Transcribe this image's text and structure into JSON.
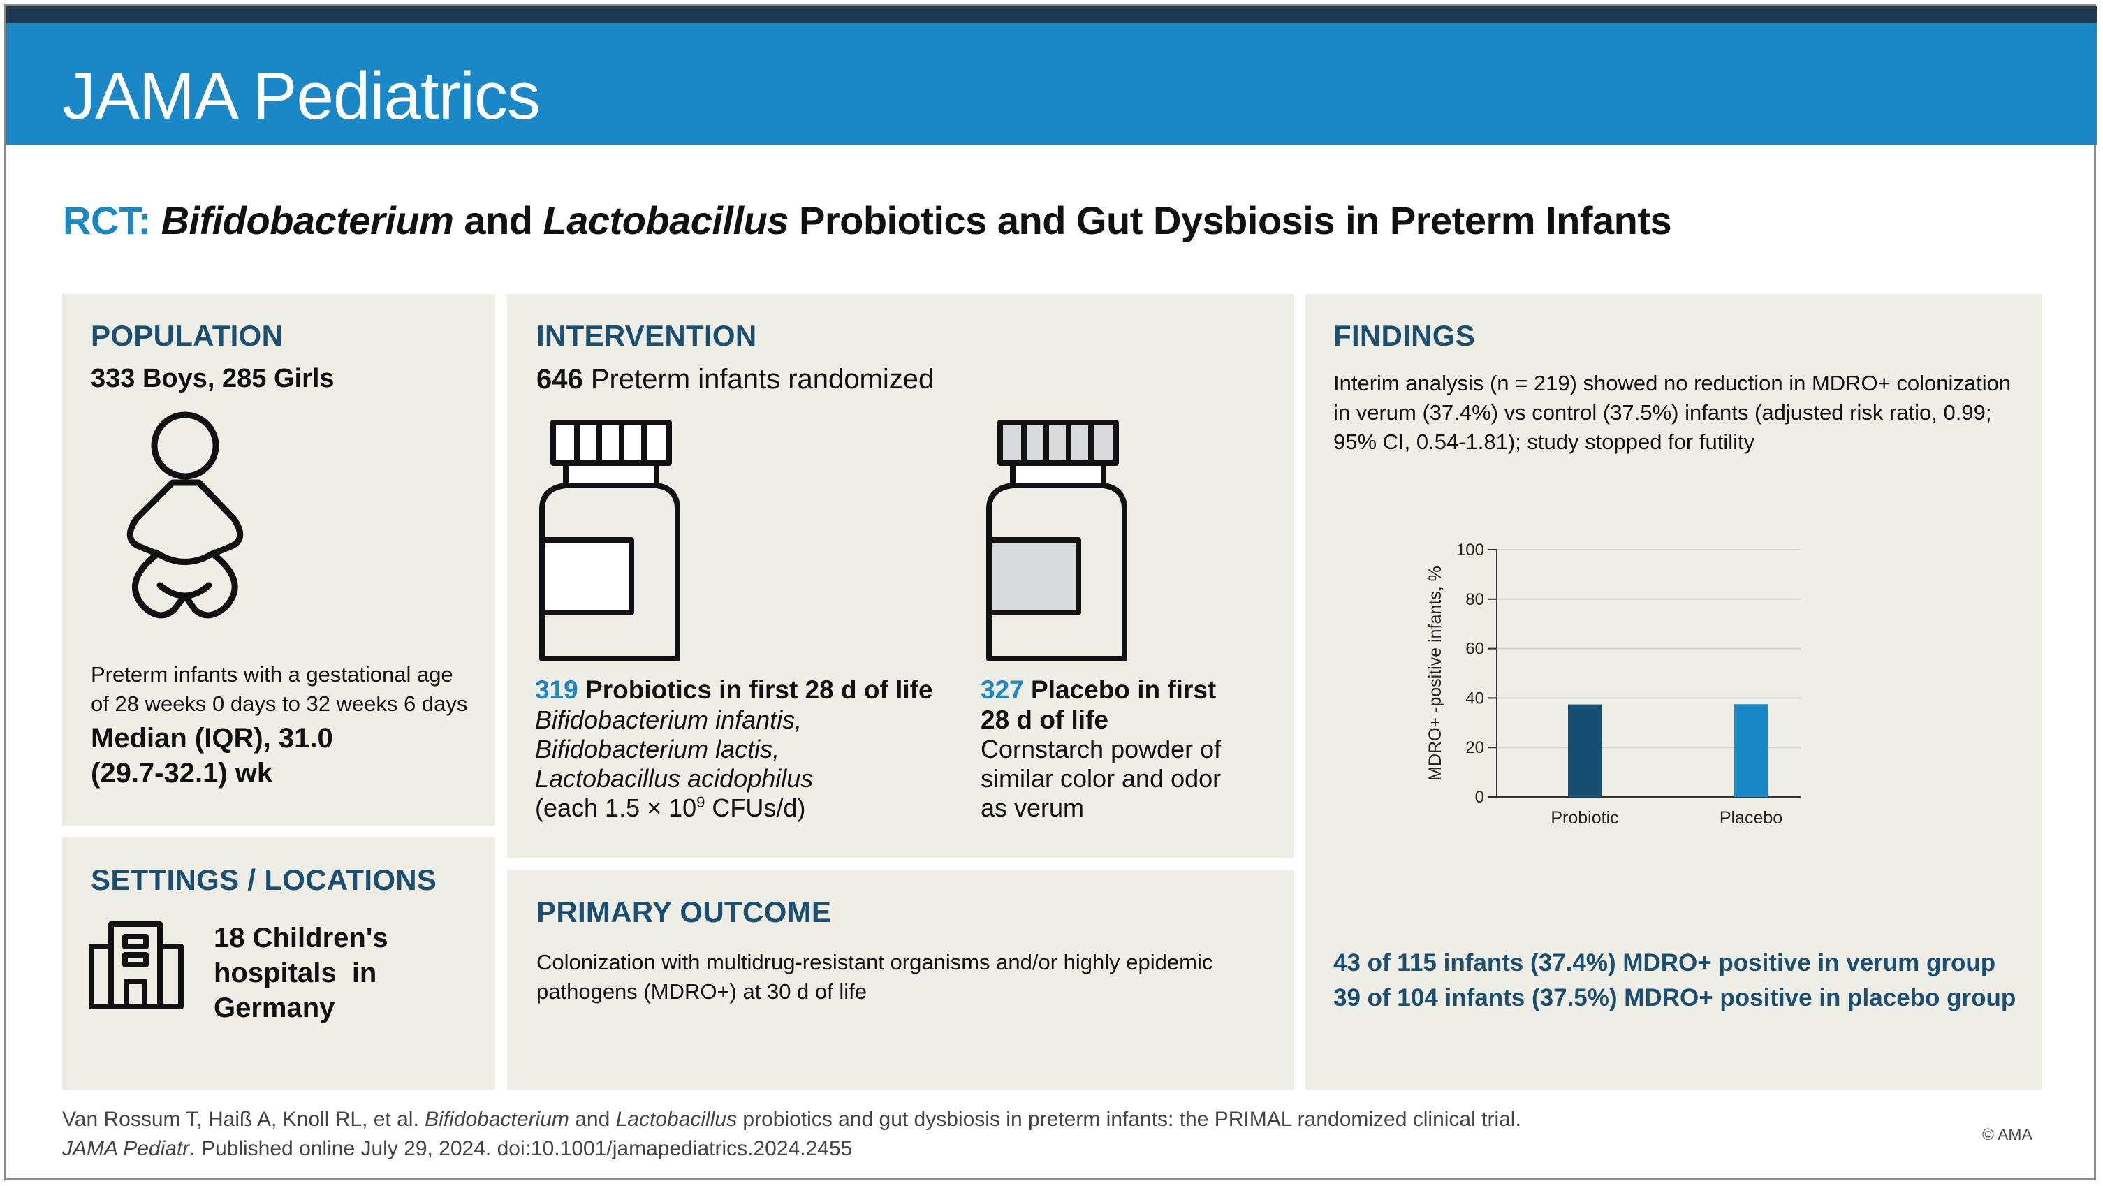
{
  "brand": "JAMA Pediatrics",
  "title": {
    "prefix": "RCT:",
    "b1": "Bifidobacterium",
    "and": "and",
    "b2": "Lactobacillus",
    "rest": "Probiotics and Gut Dysbiosis in Preterm Infants"
  },
  "population": {
    "heading": "POPULATION",
    "sex": "333 Boys, 285 Girls",
    "desc_line1": "Preterm infants with a gestational age",
    "desc_line2": "of 28 weeks 0 days to 32 weeks 6 days",
    "median_line1": "Median (IQR), 31.0",
    "median_line2": "(29.7-32.1) wk",
    "icon": "infant-icon"
  },
  "settings": {
    "heading": "SETTINGS / LOCATIONS",
    "line1": "18 Children's",
    "line2": "hospitals  in",
    "line3": "Germany",
    "icon": "hospital-building-icon"
  },
  "intervention": {
    "heading": "INTERVENTION",
    "randomized_count": "646",
    "randomized_text": "Preterm infants randomized",
    "probiotic": {
      "count": "319",
      "label": "Probiotics in first 28 d of life",
      "line1": "Bifidobacterium infantis,",
      "line2": "Bifidobacterium lactis,",
      "line3": "Lactobacillus acidophilus",
      "dose_pre": "(each 1.5 × 10",
      "dose_exp": "9",
      "dose_post": " CFUs/d)",
      "icon": "probiotic-bottle-icon"
    },
    "placebo": {
      "count": "327",
      "label_line1": "Placebo in first",
      "label_line2": "28 d of life",
      "line1": "Cornstarch powder of",
      "line2": "similar color and odor",
      "line3": "as verum",
      "icon": "placebo-bottle-icon"
    }
  },
  "outcome": {
    "heading": "PRIMARY OUTCOME",
    "line1": "Colonization with multidrug-resistant organisms and/or highly epidemic",
    "line2": "pathogens (MDRO+) at 30 d of life"
  },
  "findings": {
    "heading": "FINDINGS",
    "line1": "Interim analysis (n = 219) showed no reduction in MDRO+ colonization",
    "line2": "in verum (37.4%) vs control (37.5%) infants (adjusted risk ratio, 0.99;",
    "line3": "95% CI, 0.54-1.81); study stopped for futility",
    "result1": "43 of 115 infants (37.4%) MDRO+ positive in verum group",
    "result2": "39 of 104 infants (37.5%) MDRO+ positive in placebo group"
  },
  "chart_data": {
    "type": "bar",
    "categories": [
      "Probiotic",
      "Placebo"
    ],
    "values": [
      37.4,
      37.5
    ],
    "colors": [
      "#164e72",
      "#1a87c6"
    ],
    "ylabel": "MDRO+ -positive infants, %",
    "xlabel": "",
    "ylim": [
      0,
      100
    ],
    "yticks": [
      "0",
      "20",
      "40",
      "60",
      "80",
      "100"
    ],
    "grid": true
  },
  "citation": {
    "line1_pre": "Van Rossum T, Haiß A, Knoll RL, et al. ",
    "line1_b1": "Bifidobacterium",
    "line1_and": " and ",
    "line1_b2": "Lactobacillus",
    "line1_post": " probiotics and gut dysbiosis in preterm infants: the PRIMAL randomized clinical trial.",
    "line2_journal": "JAMA Pediatr",
    "line2_post": ". Published online July 29, 2024. doi:10.1001/jamapediatrics.2024.2455",
    "copyright": "© AMA"
  },
  "colors": {
    "header": "#1a87c6",
    "topbar": "#1d3a52",
    "panel": "#eeede6",
    "heading": "#1a4f72"
  }
}
